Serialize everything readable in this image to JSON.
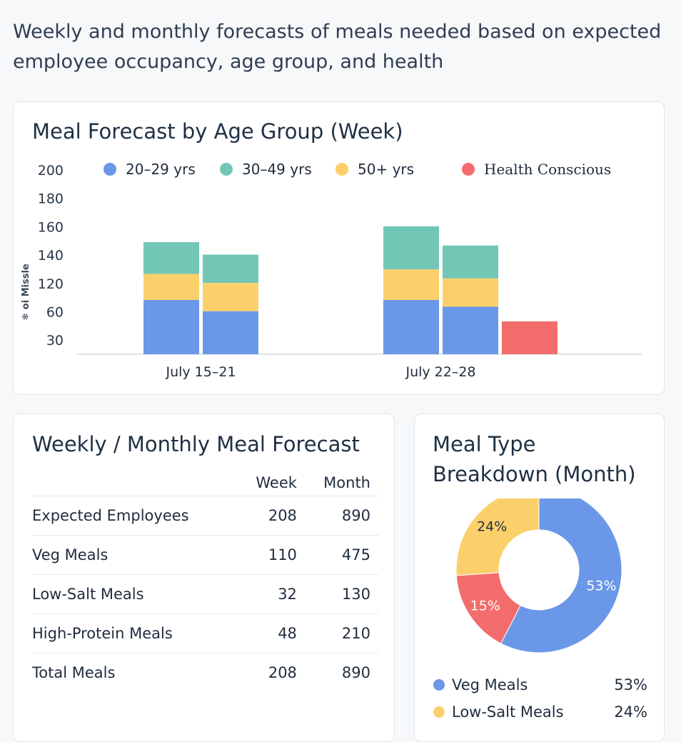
{
  "subtitle": "Weekly and monthly forecasts of meals needed based on expected employee occupancy, age group, and health",
  "colors": {
    "age_20_29": "#6b97e8",
    "age_30_49": "#72c6b6",
    "age_50_plus": "#fbd06b",
    "health_conscious": "#f26d6c"
  },
  "bar_card": {
    "title": "Meal Forecast by Age Group (Week)"
  },
  "table_card": {
    "title": "Weekly / Monthly Meal Forecast",
    "headers": {
      "week": "Week",
      "month": "Month"
    },
    "rows": [
      {
        "label": "Expected Employees",
        "week": "208",
        "month": "890"
      },
      {
        "label": "Veg Meals",
        "week": "110",
        "month": "475"
      },
      {
        "label": "Low-Salt Meals",
        "week": "32",
        "month": "130"
      },
      {
        "label": "High-Protein Meals",
        "week": "48",
        "month": "210"
      },
      {
        "label": "Total Meals",
        "week": "208",
        "month": "890"
      }
    ]
  },
  "donut_card": {
    "title_line1": "Meal Type",
    "title_line2": "Breakdown (Month)",
    "legend": [
      {
        "label": "Veg Meals",
        "value": "53%",
        "color": "#6b97e8"
      },
      {
        "label": "Low-Salt Meals",
        "value": "24%",
        "color": "#fbd06b"
      }
    ]
  },
  "chart_data": [
    {
      "type": "bar",
      "stacked": true,
      "title": "Meal Forecast by Age Group (Week)",
      "ylabel": "❄ oi Missle",
      "yticks": [
        200,
        180,
        160,
        140,
        120,
        60,
        30
      ],
      "legend": [
        "20–29 yrs",
        "30–49 yrs",
        "50+ yrs",
        "Health Conscious"
      ],
      "legend_position": "top",
      "groups": [
        {
          "label": "July 15–21",
          "bars": [
            {
              "segments": [
                {
                  "series": "20–29 yrs",
                  "value": 48
                },
                {
                  "series": "50+ yrs",
                  "value": 23
                },
                {
                  "series": "30–49 yrs",
                  "value": 28
                }
              ]
            },
            {
              "segments": [
                {
                  "series": "20–29 yrs",
                  "value": 38
                },
                {
                  "series": "50+ yrs",
                  "value": 25
                },
                {
                  "series": "30–49 yrs",
                  "value": 25
                }
              ]
            }
          ]
        },
        {
          "label": "July 22–28",
          "bars": [
            {
              "segments": [
                {
                  "series": "20–29 yrs",
                  "value": 48
                },
                {
                  "series": "50+ yrs",
                  "value": 27
                },
                {
                  "series": "30–49 yrs",
                  "value": 38
                }
              ]
            },
            {
              "segments": [
                {
                  "series": "20–29 yrs",
                  "value": 42
                },
                {
                  "series": "50+ yrs",
                  "value": 25
                },
                {
                  "series": "30–49 yrs",
                  "value": 29
                }
              ]
            },
            {
              "segments": [
                {
                  "series": "Health Conscious",
                  "value": 29
                }
              ]
            }
          ]
        }
      ]
    },
    {
      "type": "pie",
      "donut": true,
      "title": "Meal Type Breakdown (Month)",
      "slices": [
        {
          "label": "Veg Meals",
          "value": 53,
          "display": "53%",
          "color": "#6b97e8"
        },
        {
          "label": "",
          "value": 15,
          "display": "15%",
          "color": "#f26d6c"
        },
        {
          "label": "Low-Salt Meals",
          "value": 24,
          "display": "24%",
          "color": "#fbd06b"
        }
      ]
    }
  ]
}
